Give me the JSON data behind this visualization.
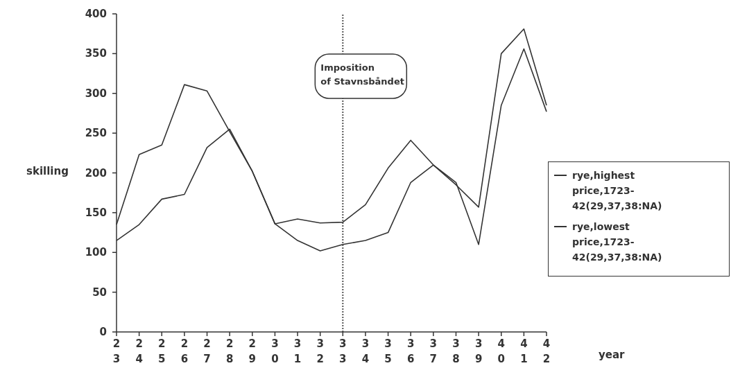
{
  "chart_data": {
    "type": "line",
    "xlabel": "year",
    "ylabel": "skilling",
    "categories": [
      "23",
      "24",
      "25",
      "26",
      "27",
      "28",
      "29",
      "30",
      "31",
      "32",
      "33",
      "34",
      "35",
      "36",
      "37",
      "38",
      "39",
      "40",
      "41",
      "42"
    ],
    "series": [
      {
        "name": "rye,highest price,1723-42(29,37,38:NA)",
        "color": "#333333",
        "values": [
          135,
          223,
          235,
          311,
          303,
          252,
          202,
          136,
          142,
          137,
          138,
          160,
          206,
          241,
          210,
          185,
          157,
          350,
          381,
          285
        ]
      },
      {
        "name": "rye,lowest price,1723-42(29,37,38:NA)",
        "color": "#333333",
        "values": [
          115,
          135,
          167,
          173,
          232,
          255,
          202,
          136,
          115,
          102,
          110,
          115,
          125,
          188,
          210,
          188,
          110,
          285,
          356,
          277
        ]
      }
    ],
    "ylim": [
      0,
      400
    ],
    "yticks": [
      0,
      50,
      100,
      150,
      200,
      250,
      300,
      350,
      400
    ],
    "ref_lines": [
      {
        "axis": "x",
        "value": "33",
        "label": "Imposition\nof Stavnsbåndet",
        "line_style": "dotted",
        "color": "#555555"
      }
    ],
    "grid": false,
    "legend": "right",
    "marker": "none",
    "line_style": "solid"
  }
}
